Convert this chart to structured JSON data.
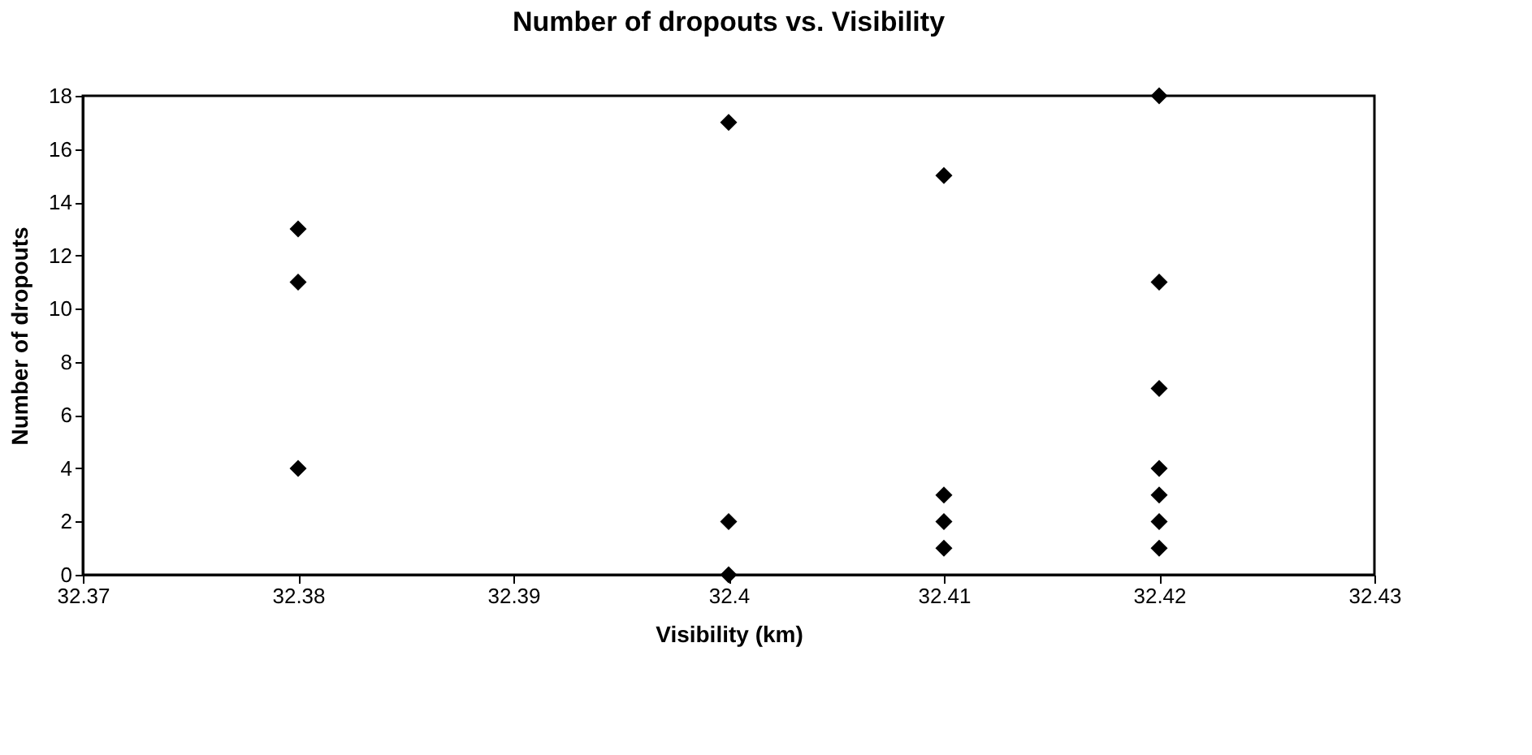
{
  "chart_data": {
    "type": "scatter",
    "title": "Number of dropouts vs. Visibility",
    "xlabel": "Visibility (km)",
    "ylabel": "Number of dropouts",
    "x": [
      32.38,
      32.38,
      32.38,
      32.4,
      32.4,
      32.4,
      32.41,
      32.41,
      32.41,
      32.41,
      32.42,
      32.42,
      32.42,
      32.42,
      32.42,
      32.42,
      32.42
    ],
    "values": [
      13,
      11,
      4,
      17,
      2,
      0,
      15,
      3,
      2,
      1,
      18,
      11,
      7,
      4,
      3,
      2,
      1
    ],
    "color": "#000000",
    "marker": "diamond",
    "xlim": [
      32.37,
      32.43
    ],
    "xticks": [
      32.37,
      32.38,
      32.39,
      32.4,
      32.41,
      32.42,
      32.43
    ],
    "ylim": [
      0,
      18
    ],
    "yticks": [
      0,
      2,
      4,
      6,
      8,
      10,
      12,
      14,
      16,
      18
    ],
    "grid": false
  }
}
